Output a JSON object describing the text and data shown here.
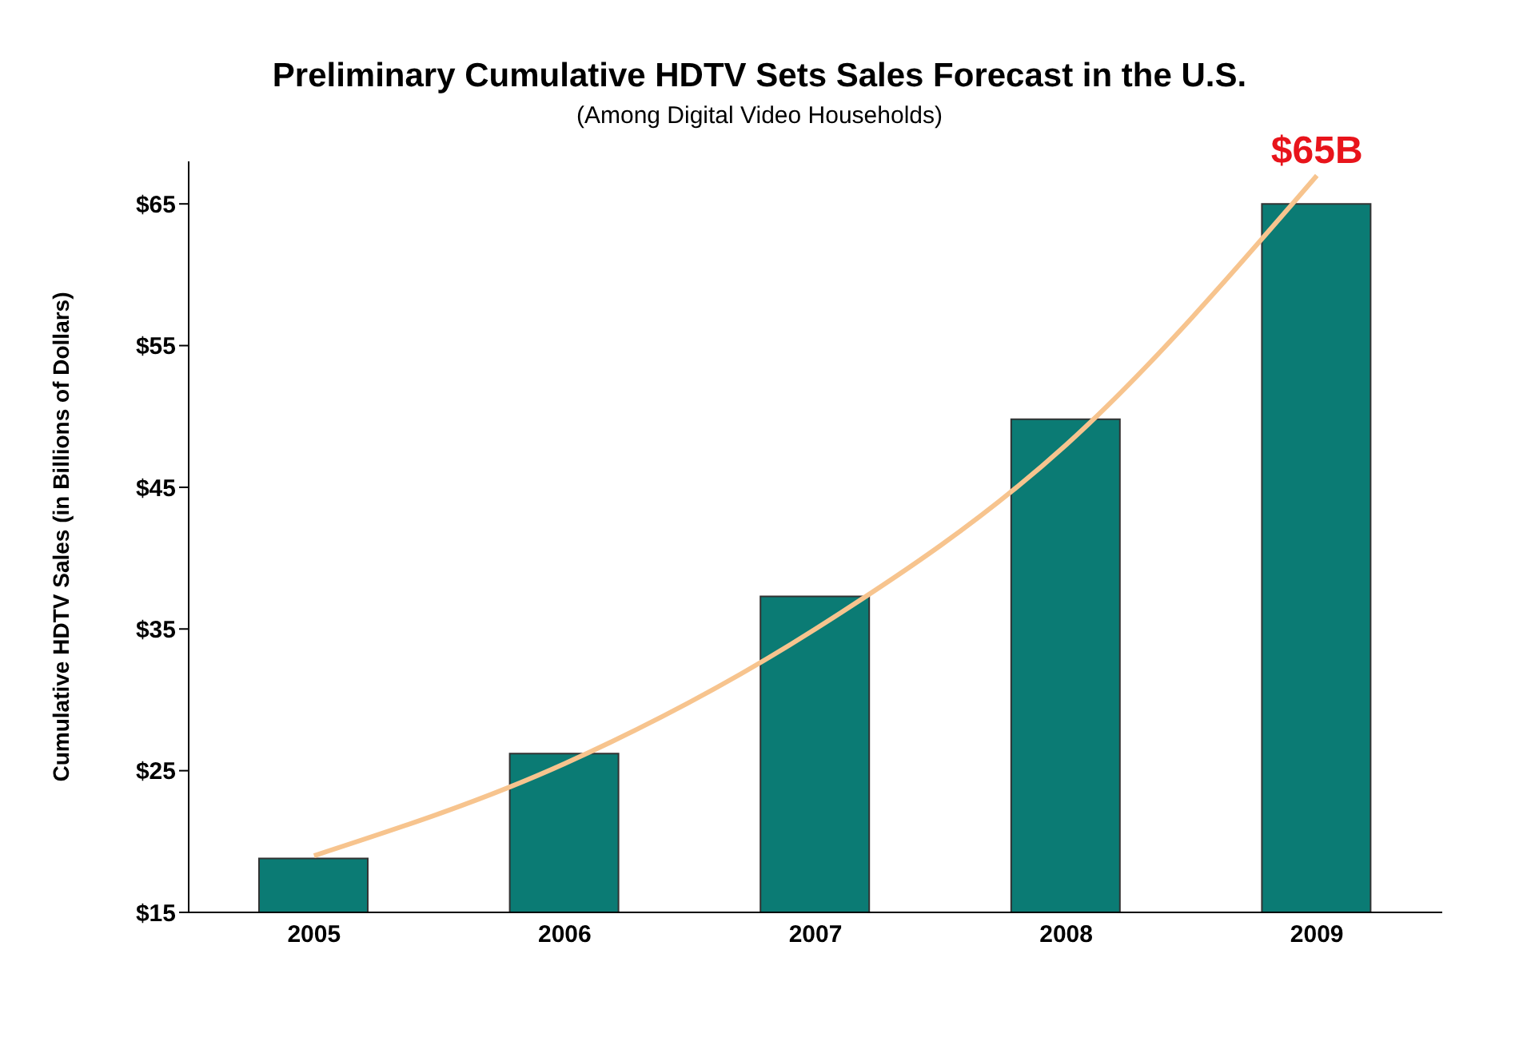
{
  "chart_data": {
    "type": "bar",
    "title": "Preliminary Cumulative HDTV Sets Sales Forecast in the U.S.",
    "subtitle": "(Among Digital Video Households)",
    "ylabel": "Cumulative HDTV Sales (in Billions of Dollars)",
    "categories": [
      "2005",
      "2006",
      "2007",
      "2008",
      "2009"
    ],
    "series": [
      {
        "color": "#0b7b74",
        "values": [
          18.8,
          26.2,
          37.3,
          49.8,
          65
        ]
      },
      {
        "type": "line",
        "color": "#f7c48e",
        "values": [
          19,
          25.5,
          35,
          48,
          67
        ],
        "marker": "none"
      }
    ],
    "ylim": [
      15,
      68
    ],
    "yticks": [
      {
        "value": 15,
        "label": "$15"
      },
      {
        "value": 25,
        "label": "$25"
      },
      {
        "value": 35,
        "label": "$35"
      },
      {
        "value": 45,
        "label": "$45"
      },
      {
        "value": 55,
        "label": "$55"
      },
      {
        "value": 65,
        "label": "$65"
      }
    ],
    "grid": false,
    "legend": false,
    "annotations": [
      {
        "text": "$65B",
        "x": "2009",
        "y": 67
      }
    ]
  }
}
